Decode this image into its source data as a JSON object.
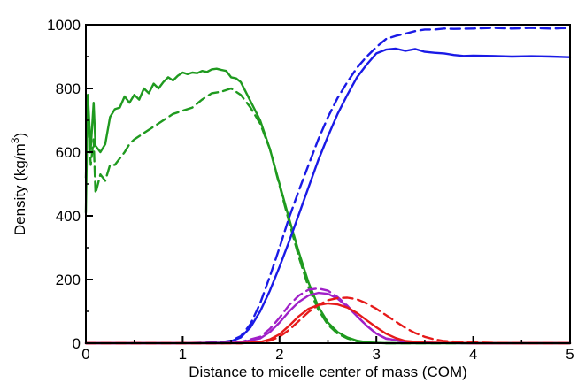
{
  "chart_data": {
    "type": "line",
    "title": "",
    "xlabel": "Distance to micelle center of mass (COM)",
    "ylabel": {
      "main": "Density (kg/m",
      "sup": "3",
      "end": ")"
    },
    "xlim": [
      0,
      5
    ],
    "ylim": [
      0,
      1000
    ],
    "xticks": [
      0,
      1,
      2,
      3,
      4,
      5
    ],
    "yticks": [
      0,
      200,
      400,
      600,
      800,
      1000
    ],
    "grid": false,
    "legend": "none",
    "series": [
      {
        "color": "#1f9a1f",
        "dash": "solid",
        "x": [
          0.0,
          0.02,
          0.05,
          0.08,
          0.1,
          0.15,
          0.2,
          0.25,
          0.3,
          0.35,
          0.4,
          0.45,
          0.5,
          0.55,
          0.6,
          0.65,
          0.7,
          0.75,
          0.8,
          0.85,
          0.9,
          0.95,
          1.0,
          1.05,
          1.1,
          1.15,
          1.2,
          1.25,
          1.3,
          1.35,
          1.4,
          1.45,
          1.5,
          1.55,
          1.6,
          1.65,
          1.7,
          1.8,
          1.9,
          2.0,
          2.1,
          2.2,
          2.3,
          2.4,
          2.5,
          2.6,
          2.7,
          2.8,
          2.9,
          3.0,
          3.1,
          3.2,
          3.5,
          4.0,
          4.5,
          5.0
        ],
        "y": [
          410,
          780,
          610,
          755,
          620,
          600,
          625,
          710,
          735,
          740,
          775,
          755,
          780,
          765,
          800,
          785,
          815,
          800,
          820,
          835,
          825,
          840,
          850,
          845,
          850,
          848,
          855,
          852,
          860,
          862,
          858,
          855,
          835,
          832,
          820,
          790,
          760,
          700,
          610,
          500,
          390,
          285,
          190,
          115,
          65,
          35,
          18,
          8,
          3,
          1,
          0,
          0,
          0,
          0,
          0,
          0
        ]
      },
      {
        "color": "#1f9a1f",
        "dash": "dashed",
        "x": [
          0.0,
          0.02,
          0.05,
          0.08,
          0.1,
          0.15,
          0.2,
          0.25,
          0.3,
          0.35,
          0.4,
          0.45,
          0.5,
          0.6,
          0.7,
          0.8,
          0.9,
          1.0,
          1.1,
          1.2,
          1.3,
          1.4,
          1.5,
          1.6,
          1.7,
          1.8,
          1.9,
          2.0,
          2.1,
          2.2,
          2.3,
          2.4,
          2.5,
          2.6,
          2.7,
          2.8,
          2.9,
          3.0,
          3.1,
          3.5,
          4.0,
          4.5,
          5.0
        ],
        "y": [
          520,
          740,
          560,
          640,
          470,
          530,
          510,
          560,
          560,
          580,
          600,
          625,
          640,
          660,
          680,
          700,
          720,
          730,
          740,
          765,
          785,
          790,
          800,
          780,
          740,
          690,
          610,
          495,
          380,
          270,
          175,
          105,
          58,
          30,
          15,
          6,
          2,
          1,
          0,
          0,
          0,
          0,
          0
        ]
      },
      {
        "color": "#1a1ae6",
        "dash": "solid",
        "x": [
          0.0,
          1.0,
          1.4,
          1.5,
          1.6,
          1.7,
          1.8,
          1.9,
          2.0,
          2.1,
          2.2,
          2.3,
          2.4,
          2.5,
          2.6,
          2.7,
          2.8,
          2.9,
          3.0,
          3.1,
          3.2,
          3.3,
          3.4,
          3.5,
          3.6,
          3.7,
          3.8,
          3.9,
          4.0,
          4.2,
          4.4,
          4.6,
          4.8,
          5.0
        ],
        "y": [
          0,
          0,
          2,
          6,
          18,
          50,
          100,
          165,
          240,
          320,
          405,
          490,
          575,
          650,
          720,
          780,
          835,
          875,
          910,
          922,
          925,
          918,
          924,
          915,
          912,
          910,
          905,
          902,
          903,
          902,
          900,
          901,
          900,
          898
        ]
      },
      {
        "color": "#1a1ae6",
        "dash": "dashed",
        "x": [
          0.0,
          1.0,
          1.4,
          1.5,
          1.6,
          1.7,
          1.8,
          1.9,
          2.0,
          2.1,
          2.2,
          2.3,
          2.4,
          2.5,
          2.6,
          2.7,
          2.8,
          2.9,
          3.0,
          3.1,
          3.2,
          3.3,
          3.4,
          3.5,
          3.6,
          3.7,
          3.8,
          4.0,
          4.2,
          4.4,
          4.6,
          4.8,
          5.0
        ],
        "y": [
          0,
          0,
          3,
          8,
          22,
          60,
          125,
          210,
          300,
          395,
          480,
          560,
          640,
          710,
          770,
          820,
          865,
          900,
          930,
          955,
          965,
          972,
          980,
          985,
          985,
          988,
          987,
          988,
          990,
          988,
          990,
          988,
          990
        ]
      },
      {
        "color": "#a020c8",
        "dash": "solid",
        "x": [
          0.0,
          1.4,
          1.6,
          1.8,
          1.9,
          2.0,
          2.1,
          2.2,
          2.3,
          2.4,
          2.5,
          2.6,
          2.7,
          2.8,
          2.9,
          3.0,
          3.1,
          3.3,
          3.6,
          4.0,
          5.0
        ],
        "y": [
          0,
          0,
          3,
          15,
          35,
          65,
          100,
          130,
          150,
          158,
          155,
          140,
          115,
          85,
          55,
          30,
          15,
          4,
          1,
          0,
          0
        ]
      },
      {
        "color": "#a020c8",
        "dash": "dashed",
        "x": [
          0.0,
          1.4,
          1.6,
          1.8,
          1.9,
          2.0,
          2.1,
          2.2,
          2.3,
          2.4,
          2.5,
          2.6,
          2.7,
          2.8,
          2.9,
          3.0,
          3.1,
          3.3,
          3.6,
          4.0,
          5.0
        ],
        "y": [
          0,
          0,
          4,
          20,
          45,
          80,
          120,
          150,
          168,
          172,
          165,
          145,
          118,
          85,
          55,
          30,
          14,
          4,
          1,
          0,
          0
        ]
      },
      {
        "color": "#e61a1a",
        "dash": "solid",
        "x": [
          0.0,
          1.6,
          1.8,
          1.9,
          2.0,
          2.1,
          2.2,
          2.3,
          2.4,
          2.5,
          2.6,
          2.7,
          2.8,
          2.9,
          3.0,
          3.1,
          3.2,
          3.3,
          3.5,
          3.8,
          4.0,
          5.0
        ],
        "y": [
          0,
          0,
          4,
          12,
          28,
          55,
          85,
          108,
          120,
          125,
          122,
          112,
          95,
          72,
          50,
          30,
          16,
          7,
          2,
          1,
          0,
          0
        ]
      },
      {
        "color": "#e61a1a",
        "dash": "dashed",
        "x": [
          0.0,
          1.6,
          1.8,
          1.9,
          2.0,
          2.1,
          2.2,
          2.3,
          2.4,
          2.5,
          2.6,
          2.7,
          2.8,
          2.9,
          3.0,
          3.1,
          3.2,
          3.3,
          3.4,
          3.5,
          3.6,
          3.7,
          3.9,
          4.2,
          4.5,
          5.0
        ],
        "y": [
          0,
          0,
          3,
          8,
          20,
          42,
          70,
          98,
          120,
          135,
          142,
          143,
          138,
          125,
          108,
          88,
          68,
          48,
          32,
          20,
          12,
          7,
          3,
          1,
          0,
          0
        ]
      }
    ]
  }
}
